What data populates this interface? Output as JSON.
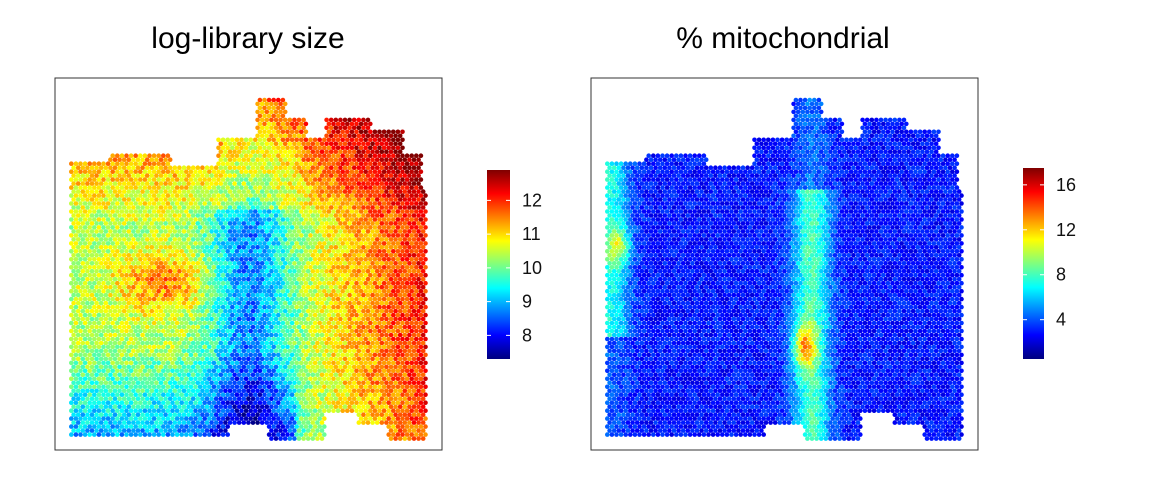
{
  "chart_data": [
    {
      "type": "heatmap",
      "title": "log-library size",
      "xlabel": "",
      "ylabel": "",
      "colormap": "jet",
      "value_range": [
        7.3,
        12.9
      ],
      "colorbar_ticks": [
        "8",
        "9",
        "10",
        "11",
        "12"
      ],
      "colorbar_tick_values": [
        8,
        9,
        10,
        11,
        12
      ],
      "grid": false,
      "legend_position": "right",
      "spot_description": "hexagonal grid of spots; high values (red) along top and right, low values (blue/cyan) in lower-left and central vertical band"
    },
    {
      "type": "heatmap",
      "title": "% mitochondrial",
      "xlabel": "",
      "ylabel": "",
      "colormap": "jet",
      "value_range": [
        0.5,
        17.5
      ],
      "colorbar_ticks": [
        "4",
        "8",
        "12",
        "16"
      ],
      "colorbar_tick_values": [
        4,
        8,
        12,
        16
      ],
      "grid": false,
      "legend_position": "right",
      "spot_description": "mostly low (dark blue); elevated values in a vertical band near center and along the left edge"
    }
  ],
  "colors": {
    "jet": [
      "#00007f",
      "#0000ff",
      "#007fff",
      "#00ffff",
      "#7fff7f",
      "#ffff00",
      "#ff7f00",
      "#ff0000",
      "#7f0000"
    ],
    "frame": "#333333"
  }
}
